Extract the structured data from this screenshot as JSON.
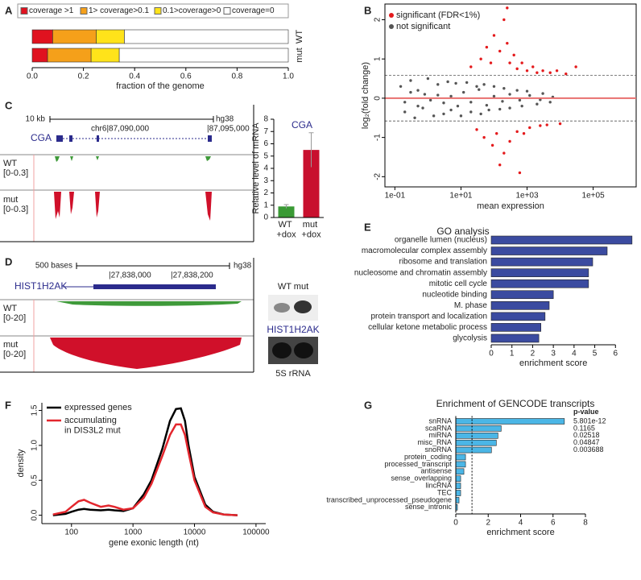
{
  "chart_data": [
    {
      "type": "stacked-bar",
      "panel": "A",
      "categories": [
        "WT",
        "mut"
      ],
      "series": [
        {
          "name": "coverage >1",
          "color": "#e0121f",
          "values": [
            0.08,
            0.06
          ]
        },
        {
          "name": "1> coverage>0.1",
          "color": "#f5a01a",
          "values": [
            0.17,
            0.17
          ]
        },
        {
          "name": "0.1>coverage>0",
          "color": "#ffe31a",
          "values": [
            0.11,
            0.11
          ]
        },
        {
          "name": "coverage=0",
          "color": "#ffffff",
          "values": [
            0.64,
            0.66
          ]
        }
      ],
      "xlim": [
        0,
        1
      ],
      "xticks": [
        {
          "value": 0,
          "label": "0.0"
        },
        0.2,
        0.4,
        0.6,
        0.8,
        {
          "value": 1,
          "label": "1.0"
        }
      ],
      "xlabel": "fraction of the genome"
    },
    {
      "type": "scatter",
      "panel": "B",
      "xlabel": "mean expression",
      "ylabel": "log₂(fold change)",
      "log_x": true,
      "xlim": [
        0.05,
        2000000
      ],
      "xticks": [
        {
          "value": 0.1,
          "label": "1e-01"
        },
        {
          "value": 10,
          "label": "1e+01"
        },
        {
          "value": 1000,
          "label": "1e+03"
        },
        {
          "value": 100000,
          "label": "1e+05"
        }
      ],
      "ylim": [
        -2.26,
        2.4
      ],
      "yticks": [
        -2,
        -1,
        0,
        1,
        2
      ],
      "hlines": [
        {
          "value": 0.58,
          "style": "dashed"
        },
        {
          "value": 0,
          "style": "solid",
          "color": "#e8706f"
        },
        {
          "value": -0.58,
          "style": "dashed"
        }
      ],
      "series": [
        {
          "name": "significant (FDR<1%)",
          "color": "#e41a1c",
          "x": [
            20,
            40,
            60,
            80,
            100,
            150,
            200,
            250,
            300,
            400,
            500,
            700,
            1000,
            1500,
            2000,
            3000,
            5000,
            8000,
            15000,
            30000,
            30,
            50,
            90,
            120,
            200,
            300,
            500,
            800,
            1200,
            2500,
            4000,
            10000,
            250,
            150,
            600
          ],
          "values": [
            0.8,
            1.0,
            1.3,
            0.9,
            1.6,
            1.2,
            2.0,
            1.4,
            0.9,
            1.1,
            0.75,
            0.9,
            0.7,
            0.8,
            0.65,
            0.7,
            0.65,
            0.7,
            0.62,
            0.8,
            -0.8,
            -1.0,
            -1.2,
            -0.9,
            -1.4,
            -1.1,
            -0.85,
            -0.9,
            -0.75,
            -0.7,
            -0.68,
            -0.65,
            2.3,
            -1.7,
            -1.9
          ]
        },
        {
          "name": "not significant",
          "color": "#555555",
          "x": [
            0.15,
            0.2,
            0.3,
            0.4,
            0.5,
            0.7,
            1,
            1.5,
            2,
            3,
            4,
            5,
            7,
            10,
            15,
            20,
            30,
            40,
            50,
            70,
            100,
            150,
            200,
            300,
            500,
            700,
            1000,
            2000,
            3000,
            5000,
            0.2,
            0.3,
            0.5,
            0.8,
            1.2,
            2,
            3,
            5,
            8,
            12,
            20,
            35,
            60,
            100,
            180,
            300,
            600,
            1200,
            2500,
            6000
          ],
          "values": [
            0.3,
            -0.35,
            0.45,
            -0.5,
            0.2,
            -0.25,
            0.5,
            -0.45,
            0.35,
            -0.4,
            0.42,
            -0.3,
            0.38,
            -0.45,
            0.4,
            -0.35,
            0.3,
            -0.4,
            0.35,
            -0.3,
            0.3,
            -0.28,
            0.25,
            -0.25,
            0.2,
            -0.2,
            0.18,
            -0.15,
            0.12,
            -0.1,
            -0.1,
            0.15,
            -0.2,
            0.1,
            -0.05,
            0.08,
            -0.12,
            0.05,
            -0.2,
            0.15,
            -0.1,
            0.22,
            -0.18,
            0.05,
            -0.08,
            0.1,
            -0.05,
            0.07,
            -0.04,
            0.03
          ]
        }
      ]
    },
    {
      "type": "bar",
      "title": "CGA",
      "categories": [
        "WT +dox",
        "mut +dox"
      ],
      "values": [
        0.9,
        5.5
      ],
      "errors": [
        0.15,
        1.4
      ],
      "colors": [
        "#3a9a35",
        "#c8102e"
      ],
      "ylim": [
        0,
        8
      ],
      "yticks": [
        0,
        1,
        2,
        3,
        4,
        5,
        6,
        7,
        8
      ],
      "ylabel": "Relative level of mRNA"
    },
    {
      "type": "hbar",
      "panel": "E",
      "title": "GO analysis",
      "categories": [
        "organelle lumen (nucleus)",
        "macromolecular complex assembly",
        "ribosome and translation",
        "nucleosome and chromatin assembly",
        "mitotic cell cycle",
        "nucleotide binding",
        "M. phase",
        "protein transport and localization",
        "cellular ketone metabolic process",
        "glycolysis"
      ],
      "values": [
        6.8,
        5.6,
        4.9,
        4.7,
        4.7,
        3.0,
        2.8,
        2.6,
        2.4,
        2.3
      ],
      "color": "#3b4ba0",
      "xlim": [
        0,
        7
      ],
      "xticks": [
        0,
        1,
        2,
        3,
        4,
        5,
        6
      ],
      "xlabel": "enrichment score"
    },
    {
      "type": "line",
      "panel": "F",
      "log_x": true,
      "xlabel": "gene exonic length (nt)",
      "ylabel": "density",
      "x": [
        50,
        80,
        100,
        130,
        160,
        200,
        300,
        400,
        500,
        700,
        1000,
        1500,
        2000,
        3000,
        4000,
        5000,
        6000,
        7000,
        8000,
        10000,
        15000,
        20000,
        30000,
        50000
      ],
      "series": [
        {
          "name": "expressed genes",
          "color": "#000000",
          "values": [
            0,
            0.02,
            0.05,
            0.08,
            0.09,
            0.08,
            0.07,
            0.08,
            0.07,
            0.06,
            0.1,
            0.3,
            0.5,
            0.95,
            1.35,
            1.52,
            1.53,
            1.35,
            1.0,
            0.55,
            0.15,
            0.05,
            0.01,
            0
          ]
        },
        {
          "name": "accumulating in DIS3L2 mut",
          "color": "#e3262d",
          "values": [
            0.01,
            0.05,
            0.12,
            0.2,
            0.22,
            0.18,
            0.12,
            0.14,
            0.12,
            0.08,
            0.1,
            0.25,
            0.45,
            0.85,
            1.15,
            1.3,
            1.3,
            1.15,
            0.9,
            0.5,
            0.12,
            0.04,
            0.01,
            0
          ]
        }
      ],
      "xlim": [
        33,
        144000
      ],
      "xticks": [
        100,
        1000,
        10000,
        100000
      ],
      "ylim": [
        -0.12,
        1.61
      ],
      "yticks": [
        {
          "value": 0,
          "label": "0.0"
        },
        0.5,
        {
          "value": 1,
          "label": "1.0"
        },
        1.5
      ]
    },
    {
      "type": "hbar",
      "panel": "G",
      "title": "Enrichment of GENCODE transcripts",
      "categories": [
        "snRNA",
        "scaRNA",
        "miRNA",
        "misc_RNA",
        "snoRNA",
        "protein_coding",
        "processed_transcript",
        "antisense",
        "sense_overlapping",
        "lincRNA",
        "TEC",
        "transcribed_unprocessed_pseudogene",
        "sense_intronic"
      ],
      "values": [
        6.7,
        2.8,
        2.6,
        2.5,
        2.2,
        0.6,
        0.6,
        0.5,
        0.3,
        0.3,
        0.3,
        0.2,
        0.1
      ],
      "color": "#4bb6e6",
      "xlim": [
        0,
        8
      ],
      "xticks": [
        0,
        2,
        4,
        6,
        8
      ],
      "xlabel": "enrichment score",
      "threshold": 1,
      "p_value_header": "p-value",
      "p_values": [
        5.801e-12,
        0.1165,
        0.02518,
        0.04847,
        0.003688,
        null,
        null,
        null,
        null,
        null,
        null,
        null,
        null
      ]
    }
  ],
  "genome_tracks": [
    {
      "panel": "C",
      "scale": "10 kb",
      "assembly": "hg38",
      "coords": [
        "chr6|87,090,000",
        "|87,095,000"
      ],
      "gene": "CGA",
      "tracks": [
        {
          "name": "WT",
          "range": "[0-0.3]"
        },
        {
          "name": "mut",
          "range": "[0-0.3]"
        }
      ]
    },
    {
      "panel": "D",
      "scale": "500 bases",
      "assembly": "hg38",
      "coords": [
        "|27,838,000",
        "|27,838,200"
      ],
      "gene": "HIST1H2AK",
      "tracks": [
        {
          "name": "WT",
          "range": "[0-20]"
        },
        {
          "name": "mut",
          "range": "[0-20]"
        }
      ]
    }
  ],
  "blot": {
    "lanes": "WT mut",
    "probe": "HIST1H2AK",
    "control": "5S rRNA"
  }
}
